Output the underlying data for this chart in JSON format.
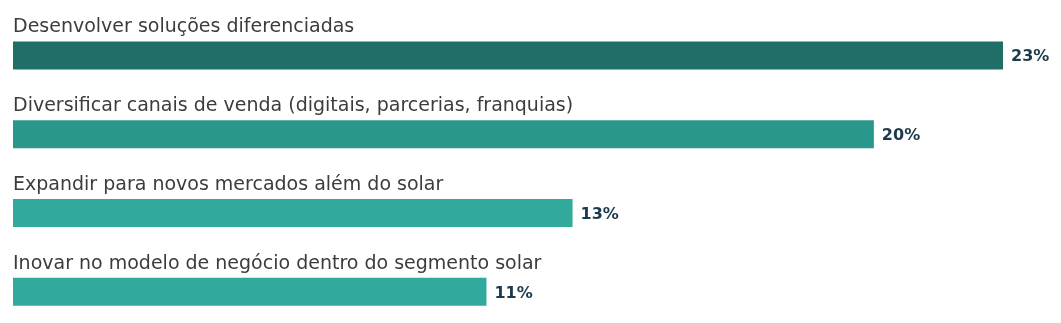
{
  "chart_data": {
    "type": "bar",
    "orientation": "horizontal",
    "categories": [
      "Desenvolver soluções diferenciadas",
      "Diversificar canais de venda (digitais, parcerias, franquias)",
      "Expandir para novos mercados além do solar",
      "Inovar no modelo de negócio dentro do segmento solar"
    ],
    "values": [
      23,
      20,
      13,
      11
    ],
    "value_labels": [
      "23%",
      "20%",
      "13%",
      "11%"
    ],
    "colors": [
      "#1f6f68",
      "#2a978c",
      "#31a99c",
      "#31a99c"
    ],
    "tick_labels": false,
    "grid": false
  }
}
